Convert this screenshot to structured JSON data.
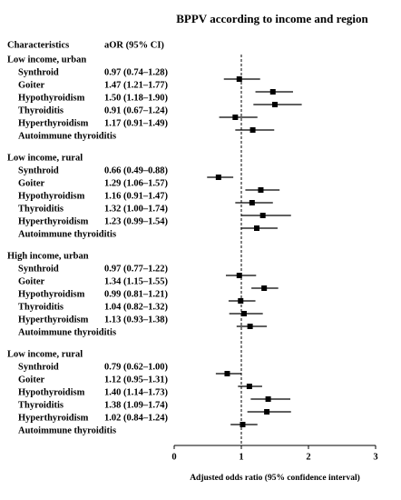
{
  "chart_data": {
    "type": "forest",
    "title": "BPPV according to income and region",
    "column_headers": [
      "Characteristics",
      "aOR (95% CI)"
    ],
    "x_label": "Adjusted odds ratio (95% confidence interval)",
    "xlim": [
      0,
      3
    ],
    "xticks": [
      0,
      1,
      2,
      3
    ],
    "reference": 1,
    "color": "#000000",
    "groups": [
      {
        "name": "Low income, urban",
        "rows": [
          {
            "name": "Synthroid",
            "label": "0.97 (0.74–1.28)",
            "value": 0.97,
            "lower": 0.74,
            "upper": 1.28
          },
          {
            "name": "Goiter",
            "label": "1.47 (1.21–1.77)",
            "value": 1.47,
            "lower": 1.21,
            "upper": 1.77
          },
          {
            "name": "Hypothyroidism",
            "label": "1.50 (1.18–1.90)",
            "value": 1.5,
            "lower": 1.18,
            "upper": 1.9
          },
          {
            "name": "Thyroiditis",
            "label": "0.91 (0.67–1.24)",
            "value": 0.91,
            "lower": 0.67,
            "upper": 1.24
          },
          {
            "name": "Hyperthyroidism",
            "label": "1.17 (0.91–1.49)",
            "value": 1.17,
            "lower": 0.91,
            "upper": 1.49
          },
          {
            "name": "Autoimmune thyroiditis"
          }
        ]
      },
      {
        "name": "Low income, rural",
        "rows": [
          {
            "name": "Synthroid",
            "label": "0.66 (0.49–0.88)",
            "value": 0.66,
            "lower": 0.49,
            "upper": 0.88
          },
          {
            "name": "Goiter",
            "label": "1.29 (1.06–1.57)",
            "value": 1.29,
            "lower": 1.06,
            "upper": 1.57
          },
          {
            "name": "Hypothyroidism",
            "label": "1.16 (0.91–1.47)",
            "value": 1.16,
            "lower": 0.91,
            "upper": 1.47
          },
          {
            "name": "Thyroiditis",
            "label": "1.32 (1.00–1.74)",
            "value": 1.32,
            "lower": 1.0,
            "upper": 1.74
          },
          {
            "name": "Hyperthyroidism",
            "label": "1.23 (0.99–1.54)",
            "value": 1.23,
            "lower": 0.99,
            "upper": 1.54
          },
          {
            "name": "Autoimmune thyroiditis"
          }
        ]
      },
      {
        "name": "High income, urban",
        "rows": [
          {
            "name": "Synthroid",
            "label": "0.97 (0.77–1.22)",
            "value": 0.97,
            "lower": 0.77,
            "upper": 1.22
          },
          {
            "name": "Goiter",
            "label": "1.34 (1.15–1.55)",
            "value": 1.34,
            "lower": 1.15,
            "upper": 1.55
          },
          {
            "name": "Hypothyroidism",
            "label": "0.99 (0.81–1.21)",
            "value": 0.99,
            "lower": 0.81,
            "upper": 1.21
          },
          {
            "name": "Thyroiditis",
            "label": "1.04 (0.82–1.32)",
            "value": 1.04,
            "lower": 0.82,
            "upper": 1.32
          },
          {
            "name": "Hyperthyroidism",
            "label": "1.13 (0.93–1.38)",
            "value": 1.13,
            "lower": 0.93,
            "upper": 1.38
          },
          {
            "name": "Autoimmune thyroiditis"
          }
        ]
      },
      {
        "name": "Low income, rural",
        "rows": [
          {
            "name": "Synthroid",
            "label": "0.79 (0.62–1.00)",
            "value": 0.79,
            "lower": 0.62,
            "upper": 1.0
          },
          {
            "name": "Goiter",
            "label": "1.12 (0.95–1.31)",
            "value": 1.12,
            "lower": 0.95,
            "upper": 1.31
          },
          {
            "name": "Hypothyroidism",
            "label": "1.40 (1.14–1.73)",
            "value": 1.4,
            "lower": 1.14,
            "upper": 1.73
          },
          {
            "name": "Thyroiditis",
            "label": "1.38 (1.09–1.74)",
            "value": 1.38,
            "lower": 1.09,
            "upper": 1.74
          },
          {
            "name": "Hyperthyroidism",
            "label": "1.02 (0.84–1.24)",
            "value": 1.02,
            "lower": 0.84,
            "upper": 1.24
          },
          {
            "name": "Autoimmune thyroiditis"
          }
        ]
      }
    ]
  }
}
